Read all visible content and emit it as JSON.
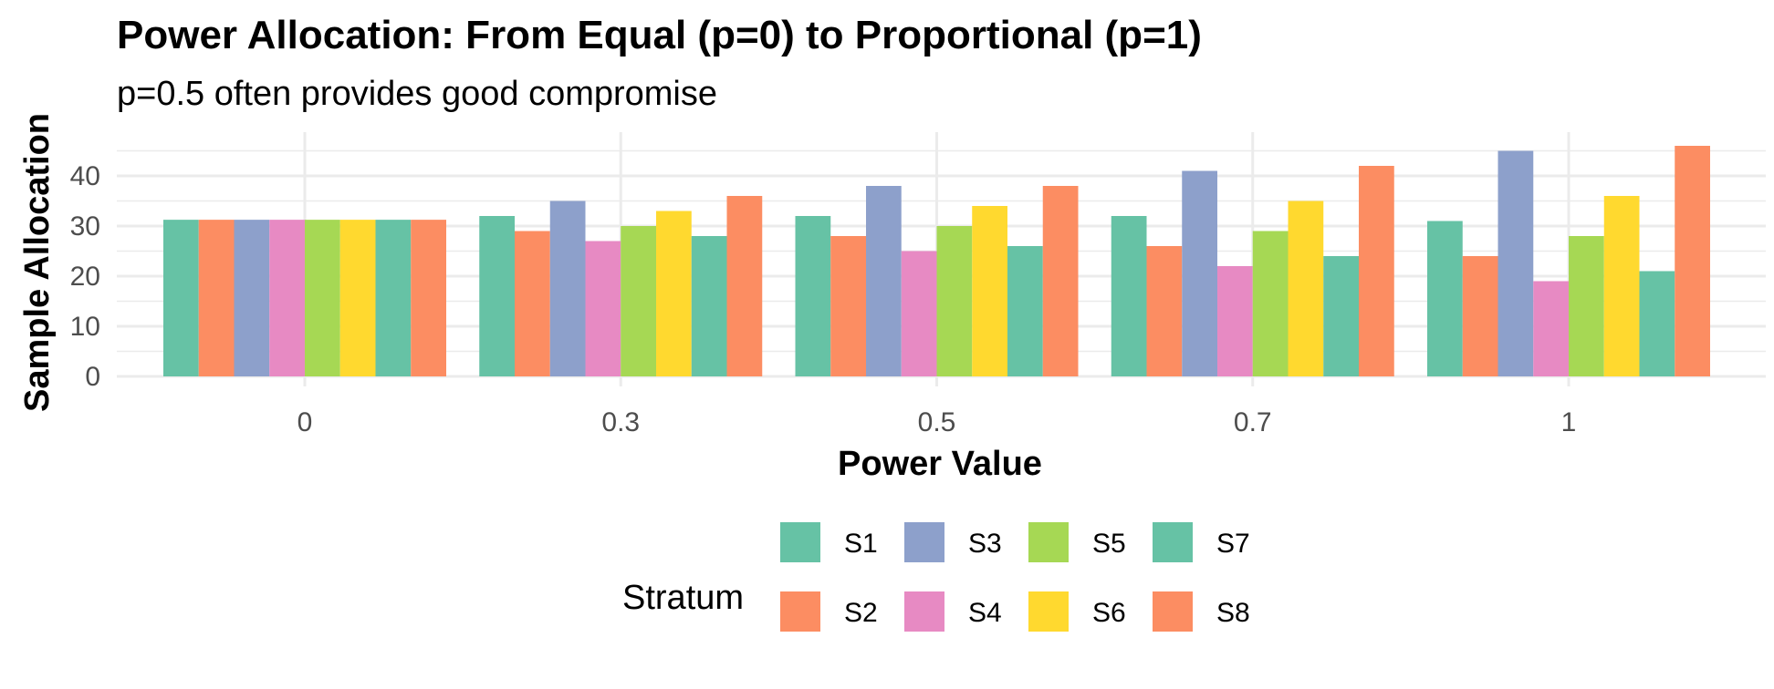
{
  "chart_data": {
    "type": "bar",
    "title": "Power Allocation: From Equal (p=0) to Proportional (p=1)",
    "subtitle": "p=0.5 often provides good compromise",
    "xlabel": "Power Value",
    "ylabel": "Sample Allocation",
    "categories": [
      "0",
      "0.3",
      "0.5",
      "0.7",
      "1"
    ],
    "ylim": [
      0,
      46
    ],
    "yticks": [
      0,
      10,
      20,
      30,
      40
    ],
    "grid": true,
    "legend": {
      "title": "Stratum",
      "position": "bottom"
    },
    "series": [
      {
        "name": "S1",
        "color": "#66C2A5",
        "values": [
          31.25,
          32,
          32,
          32,
          31
        ]
      },
      {
        "name": "S2",
        "color": "#FC8D62",
        "values": [
          31.25,
          29,
          28,
          26,
          24
        ]
      },
      {
        "name": "S3",
        "color": "#8DA0CB",
        "values": [
          31.25,
          35,
          38,
          41,
          45
        ]
      },
      {
        "name": "S4",
        "color": "#E78AC3",
        "values": [
          31.25,
          27,
          25,
          22,
          19
        ]
      },
      {
        "name": "S5",
        "color": "#A6D854",
        "values": [
          31.25,
          30,
          30,
          29,
          28
        ]
      },
      {
        "name": "S6",
        "color": "#FFD92F",
        "values": [
          31.25,
          33,
          34,
          35,
          36
        ]
      },
      {
        "name": "S7",
        "color": "#66C2A5",
        "values": [
          31.25,
          28,
          26,
          24,
          21
        ]
      },
      {
        "name": "S8",
        "color": "#FC8D62",
        "values": [
          31.25,
          36,
          38,
          42,
          46
        ]
      }
    ]
  }
}
